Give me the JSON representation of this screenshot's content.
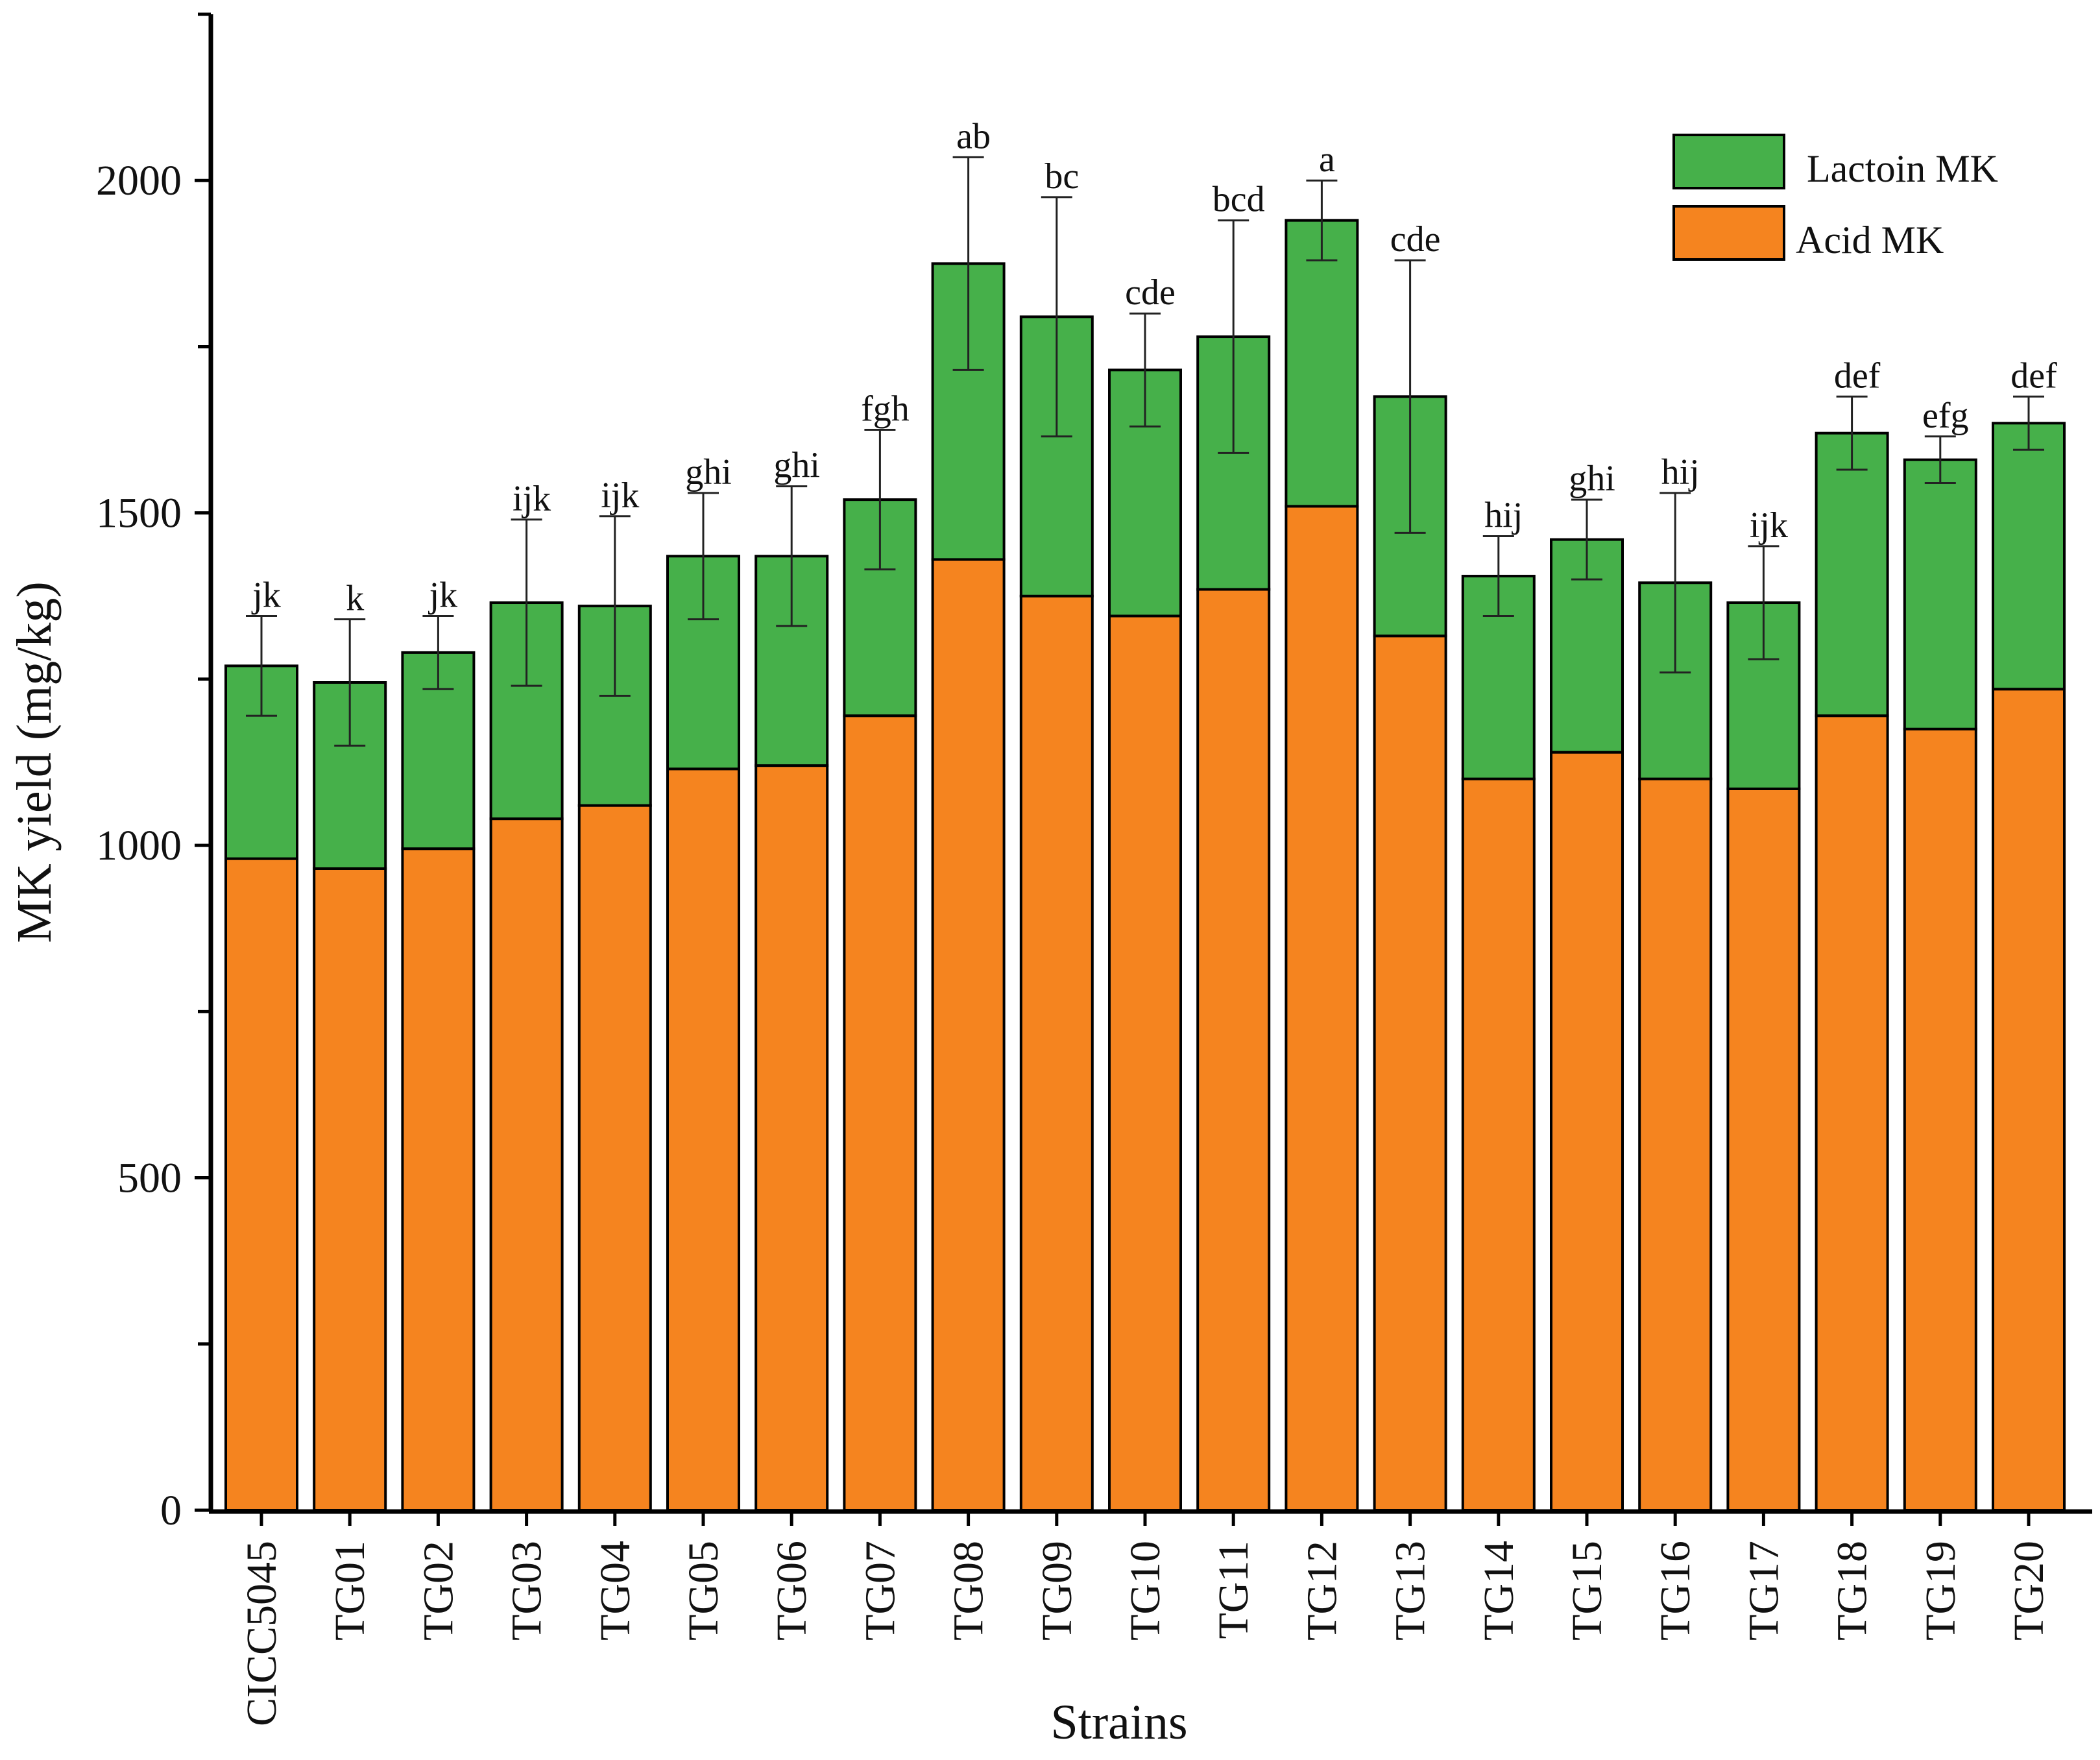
{
  "chart_data": {
    "type": "stacked-bar",
    "title": "",
    "xlabel": "Strains",
    "ylabel": "MK yield (mg/kg)",
    "ylim": [
      0,
      2250
    ],
    "yticks": [
      0,
      500,
      1000,
      1500,
      2000
    ],
    "categories": [
      "CICC5045",
      "TG01",
      "TG02",
      "TG03",
      "TG04",
      "TG05",
      "TG06",
      "TG07",
      "TG08",
      "TG09",
      "TG10",
      "TG11",
      "TG12",
      "TG13",
      "TG14",
      "TG15",
      "TG16",
      "TG17",
      "TG18",
      "TG19",
      "TG20"
    ],
    "series": [
      {
        "name": "Acid MK",
        "color": "#f5841f",
        "values": [
          980,
          965,
          995,
          1040,
          1060,
          1115,
          1120,
          1195,
          1430,
          1375,
          1345,
          1385,
          1510,
          1315,
          1100,
          1140,
          1100,
          1085,
          1195,
          1175,
          1235
        ]
      },
      {
        "name": "Lactoin MK",
        "color": "#46b04a",
        "values": [
          290,
          280,
          295,
          325,
          300,
          320,
          315,
          325,
          445,
          420,
          370,
          380,
          430,
          360,
          305,
          320,
          295,
          280,
          425,
          405,
          400
        ]
      }
    ],
    "totals": [
      1270,
      1245,
      1290,
      1365,
      1360,
      1435,
      1435,
      1520,
      1875,
      1795,
      1715,
      1765,
      1940,
      1675,
      1405,
      1460,
      1395,
      1365,
      1620,
      1580,
      1635
    ],
    "error": [
      75,
      95,
      55,
      125,
      135,
      95,
      105,
      105,
      160,
      180,
      85,
      175,
      60,
      205,
      60,
      60,
      135,
      85,
      55,
      35,
      40
    ],
    "significance": [
      "jk",
      "k",
      "jk",
      "ijk",
      "ijk",
      "ghi",
      "ghi",
      "fgh",
      "ab",
      "bc",
      "cde",
      "bcd",
      "a",
      "cde",
      "hij",
      "ghi",
      "hij",
      "ijk",
      "def",
      "efg",
      "def"
    ],
    "legend": [
      {
        "label": "Lactoin MK",
        "color": "#46b04a"
      },
      {
        "label": "Acid MK",
        "color": "#f5841f"
      }
    ],
    "legend_position": "top-right"
  }
}
